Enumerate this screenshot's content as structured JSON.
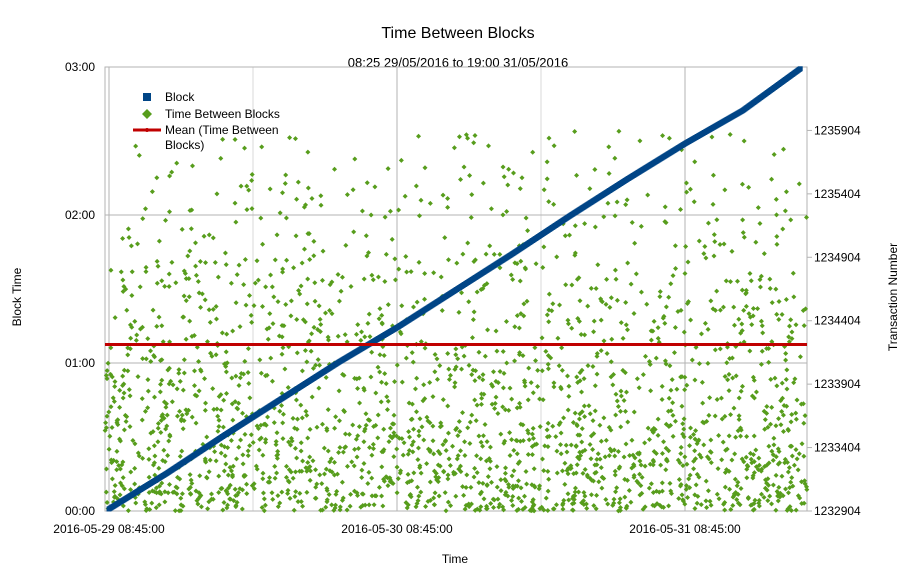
{
  "chart_data": {
    "type": "scatter",
    "title": "Time Between Blocks",
    "subtitle": "08:25 29/05/2016 to 19:00 31/05/2016",
    "xlabel": "Time",
    "ylabel_left": "Block Time",
    "ylabel_right": "Transaction Number",
    "grid": true,
    "legend_position": "top-left",
    "x_ticks": [
      "2016-05-29 08:45:00",
      "2016-05-30 08:45:00",
      "2016-05-31 08:45:00"
    ],
    "y_left_ticks": [
      "00:00",
      "01:00",
      "02:00",
      "03:00"
    ],
    "y_left_range_minutes": [
      0,
      180
    ],
    "y_right_ticks": [
      "1232904",
      "1233404",
      "1233904",
      "1234404",
      "1234904",
      "1235404",
      "1235904"
    ],
    "y_right_range": [
      1232904,
      1236404
    ],
    "x_range_days_from_first_tick": [
      -0.0139,
      2.4236
    ],
    "series": [
      {
        "name": "Block",
        "axis": "right",
        "marker": "square",
        "color": "#004586",
        "x_days": [
          0.0,
          0.2,
          0.4,
          0.6,
          0.8,
          1.0,
          1.2,
          1.4,
          1.6,
          1.8,
          2.0,
          2.2,
          2.4
        ],
        "values": [
          1232920,
          1233200,
          1233500,
          1233790,
          1234080,
          1234350,
          1234640,
          1234930,
          1235230,
          1235520,
          1235800,
          1236060,
          1236390
        ]
      },
      {
        "name": "Time Between Blocks",
        "axis": "left",
        "marker": "diamond",
        "color": "#579d1c",
        "distribution_note": "dense scatter, most values between 00:00 and 02:00, sparse up to 03:00"
      },
      {
        "name": "Mean (Time Between Blocks)",
        "axis": "left",
        "marker": "line",
        "color": "#c00000",
        "value_minutes": 67.5
      }
    ]
  }
}
